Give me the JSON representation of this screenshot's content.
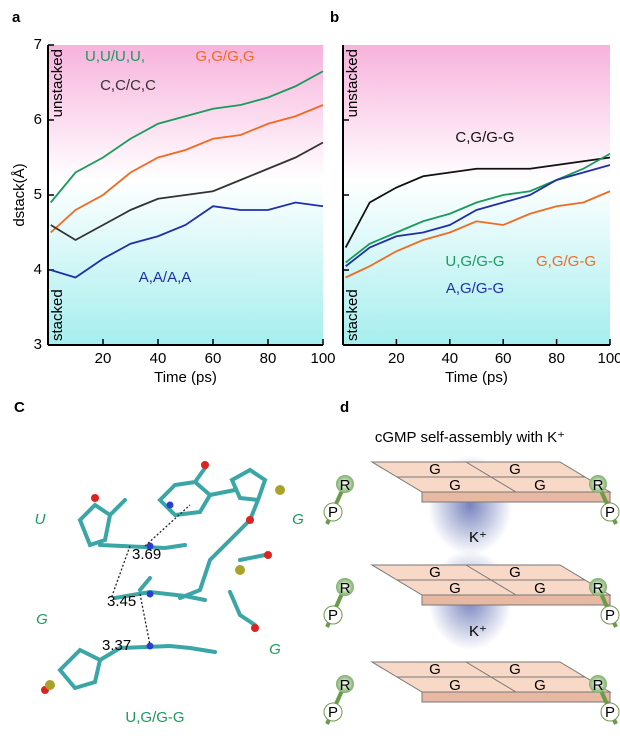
{
  "panels": {
    "a": "a",
    "b": "b",
    "c": "C",
    "d": "d"
  },
  "chart_data": [
    {
      "type": "line",
      "ylabel": "dstack(Å)",
      "xlabel": "Time (ps)",
      "annotations": [
        "unstacked",
        "stacked"
      ],
      "x": [
        1,
        10,
        20,
        30,
        40,
        50,
        60,
        70,
        80,
        90,
        100
      ],
      "xlim": [
        0,
        100
      ],
      "ylim": [
        3,
        7
      ],
      "xticks": [
        20,
        40,
        60,
        80,
        100
      ],
      "yticks": [
        3,
        4,
        5,
        6,
        7
      ],
      "series": [
        {
          "name": "U,U/U,U,",
          "color": "#1a9a5c",
          "values": [
            4.9,
            5.3,
            5.5,
            5.75,
            5.95,
            6.05,
            6.15,
            6.2,
            6.3,
            6.45,
            6.65
          ]
        },
        {
          "name": "G,G/G,G",
          "color": "#f26a21",
          "values": [
            4.5,
            4.8,
            5.0,
            5.3,
            5.5,
            5.6,
            5.75,
            5.8,
            5.95,
            6.05,
            6.2
          ]
        },
        {
          "name": "C,C/C,C",
          "color": "#333333",
          "values": [
            4.6,
            4.4,
            4.6,
            4.8,
            4.95,
            5.0,
            5.05,
            5.2,
            5.35,
            5.5,
            5.7
          ]
        },
        {
          "name": "A,A/A,A",
          "color": "#1f2fa8",
          "values": [
            4.0,
            3.9,
            4.15,
            4.35,
            4.45,
            4.6,
            4.85,
            4.8,
            4.8,
            4.9,
            4.85
          ]
        }
      ]
    },
    {
      "type": "line",
      "xlabel": "Time (ps)",
      "annotations": [
        "unstacked",
        "stacked"
      ],
      "x": [
        1,
        10,
        20,
        30,
        40,
        50,
        60,
        70,
        80,
        90,
        100
      ],
      "xlim": [
        0,
        100
      ],
      "ylim": [
        3,
        7
      ],
      "xticks": [
        20,
        40,
        60,
        80,
        100
      ],
      "yticks": [
        4,
        5,
        6
      ],
      "series": [
        {
          "name": "C,G/G-G",
          "color": "#111111",
          "values": [
            4.3,
            4.9,
            5.1,
            5.25,
            5.3,
            5.35,
            5.35,
            5.35,
            5.4,
            5.45,
            5.5
          ]
        },
        {
          "name": "U,G/G-G",
          "color": "#1a9a5c",
          "values": [
            4.1,
            4.35,
            4.5,
            4.65,
            4.75,
            4.9,
            5.0,
            5.05,
            5.2,
            5.35,
            5.55
          ]
        },
        {
          "name": "G,G/G-G",
          "color": "#f26a21",
          "values": [
            3.9,
            4.05,
            4.25,
            4.4,
            4.5,
            4.65,
            4.6,
            4.75,
            4.85,
            4.9,
            5.05
          ]
        },
        {
          "name": "A,G/G-G",
          "color": "#1f2fa8",
          "values": [
            4.05,
            4.3,
            4.45,
            4.5,
            4.6,
            4.8,
            4.9,
            5.0,
            5.2,
            5.3,
            5.4
          ]
        }
      ]
    }
  ],
  "molecule": {
    "labels": [
      "U",
      "G",
      "G",
      "G"
    ],
    "distances": [
      "3.69",
      "3.45",
      "3.37"
    ],
    "caption": "U,G/G-G"
  },
  "assembly": {
    "title": "cGMP self-assembly with K⁺",
    "ion": "K⁺",
    "base": "G",
    "ribose": "R",
    "phosphate": "P"
  }
}
